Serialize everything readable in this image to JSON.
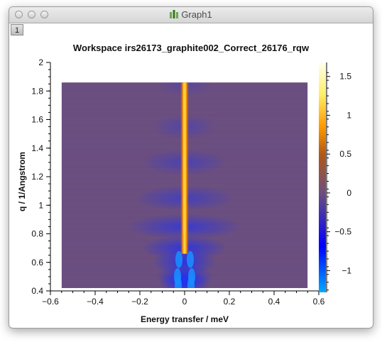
{
  "window": {
    "title": "Graph1",
    "tab_number": "1"
  },
  "chart_data": {
    "type": "heatmap",
    "title": "Workspace irs26173_graphite002_Correct_26176_rqw",
    "xlabel": "Energy transfer  / meV",
    "ylabel": "q  / 1/Angstrom",
    "xlim": [
      -0.6,
      0.6
    ],
    "ylim": [
      0.4,
      2.0
    ],
    "x_ticks": [
      "−0.6",
      "−0.4",
      "−0.2",
      "0",
      "0.2",
      "0.4",
      "0.6"
    ],
    "y_ticks": [
      "0.4",
      "0.6",
      "0.8",
      "1",
      "1.2",
      "1.4",
      "1.6",
      "1.8",
      "2"
    ],
    "data_extent": {
      "x": [
        -0.55,
        0.55
      ],
      "y": [
        0.42,
        1.86
      ]
    },
    "colorbar": {
      "range": [
        -1.28,
        1.68
      ],
      "ticks": [
        "−1",
        "−0.5",
        "0",
        "0.5",
        "1",
        "1.5"
      ],
      "colors": [
        "#00aaff",
        "#0000ff",
        "#6b4f80",
        "#c06010",
        "#ff9900",
        "#ffff99",
        "#ffffee"
      ]
    },
    "grid": false
  }
}
